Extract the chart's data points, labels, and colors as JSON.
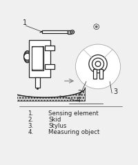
{
  "bg_color": "#f0f0f0",
  "line_color": "#222222",
  "legend": [
    {
      "num": "1.",
      "text": "Sensing element"
    },
    {
      "num": "2.",
      "text": "Skid"
    },
    {
      "num": "3.",
      "text": "Stylus"
    },
    {
      "num": "4.",
      "text": "Measuring object"
    }
  ],
  "font_size_legend": 6.2
}
